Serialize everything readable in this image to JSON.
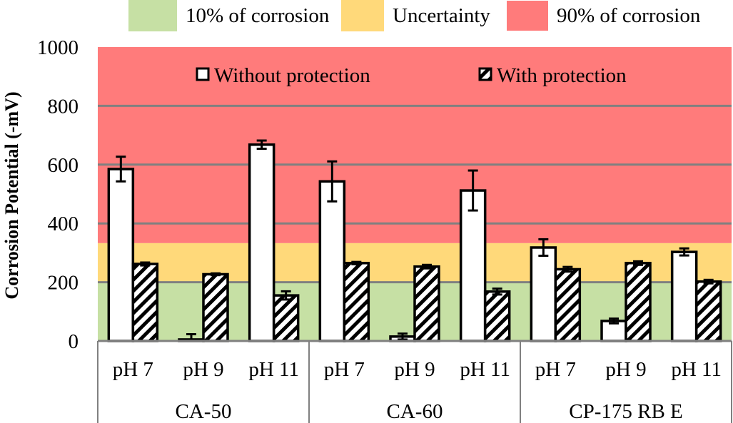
{
  "chart_data": {
    "type": "bar",
    "title": "",
    "xlabel": "",
    "ylabel": "Corrosion Potential (-mV)",
    "ylim": [
      0,
      1000
    ],
    "yticks": [
      0,
      200,
      400,
      600,
      800,
      1000
    ],
    "grid": true,
    "groups": [
      "CA-50",
      "CA-60",
      "CP-175 RB E"
    ],
    "categories": [
      "pH 7",
      "pH 9",
      "pH 11"
    ],
    "series": [
      {
        "name": "Without protection",
        "pattern": "solid-white",
        "values": [
          585,
          5,
          668,
          543,
          15,
          512,
          318,
          68,
          303
        ],
        "errors": [
          42,
          18,
          14,
          68,
          10,
          68,
          28,
          8,
          12
        ]
      },
      {
        "name": "With protection",
        "pattern": "diagonal-hatch",
        "values": [
          262,
          227,
          155,
          265,
          253,
          168,
          244,
          265,
          202
        ],
        "errors": [
          5,
          3,
          14,
          4,
          6,
          10,
          8,
          6,
          6
        ]
      }
    ],
    "bands": [
      {
        "label": "10% of corrosion",
        "from": 0,
        "to": 200,
        "color": "#c6e0a4"
      },
      {
        "label": "Uncertainty",
        "from": 200,
        "to": 333,
        "color": "#ffd97a"
      },
      {
        "label": "90% of corrosion",
        "from": 333,
        "to": 1000,
        "color": "#ff7b7b"
      }
    ],
    "legend": {
      "bands_position": "top",
      "series_position": "top-inside"
    }
  }
}
